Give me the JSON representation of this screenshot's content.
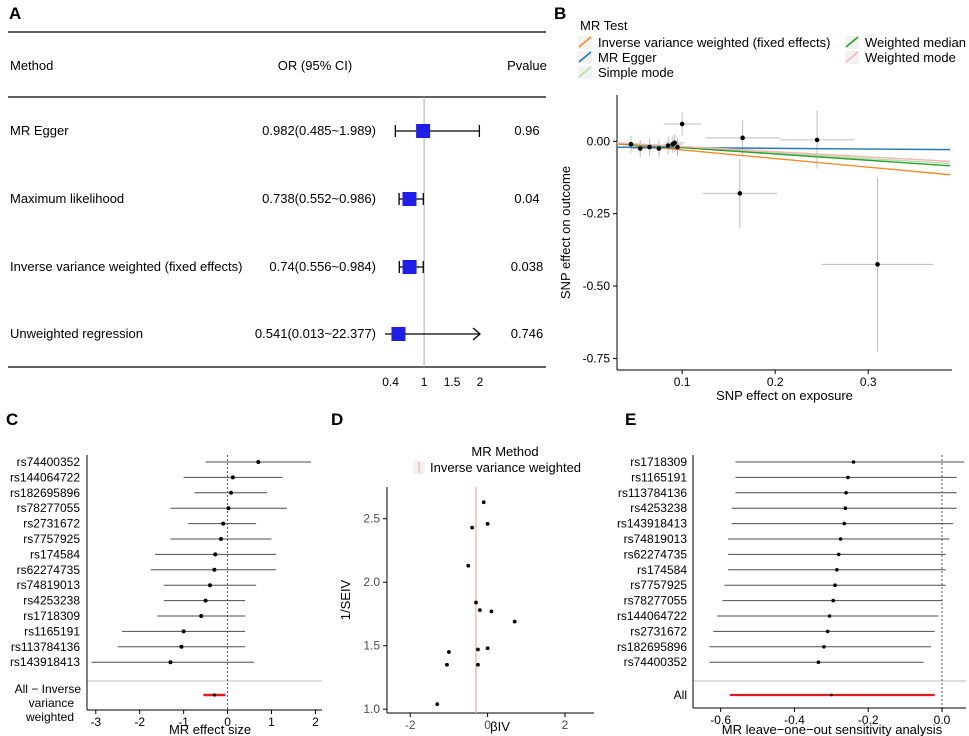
{
  "figure": {
    "panel_letters": [
      "A",
      "B",
      "C",
      "D",
      "E"
    ]
  },
  "chart_data": [
    {
      "panel": "A",
      "type": "forest",
      "headers": {
        "method": "Method",
        "or": "OR (95% CI)",
        "pvalue": "Pvalue"
      },
      "rows": [
        {
          "method": "MR Egger",
          "or_text": "0.982(0.485~1.989)",
          "or": 0.982,
          "lo": 0.485,
          "hi": 1.989,
          "p": "0.96",
          "arrow": false
        },
        {
          "method": "Maximum likelihood",
          "or_text": "0.738(0.552~0.986)",
          "or": 0.738,
          "lo": 0.552,
          "hi": 0.986,
          "p": "0.04",
          "arrow": false
        },
        {
          "method": "Inverse variance weighted (fixed effects)",
          "or_text": "0.74(0.556~0.984)",
          "or": 0.74,
          "lo": 0.556,
          "hi": 0.984,
          "p": "0.038",
          "arrow": false
        },
        {
          "method": "Unweighted regression",
          "or_text": "0.541(0.013~22.377)",
          "or": 0.541,
          "lo": 0.013,
          "hi": 22.377,
          "p": "0.746",
          "arrow": true
        }
      ],
      "xticks": [
        {
          "v": 0.4,
          "label": "0.4"
        },
        {
          "v": 1,
          "label": "1"
        },
        {
          "v": 1.5,
          "label": "1.5"
        },
        {
          "v": 2,
          "label": "2"
        }
      ],
      "xlim": [
        0.3,
        2.0
      ],
      "ref": 1
    },
    {
      "panel": "B",
      "type": "scatter",
      "legend_title": "MR Test",
      "legend": [
        {
          "name": "Inverse variance weighted (fixed effects)",
          "color": "#f28c28"
        },
        {
          "name": "MR Egger",
          "color": "#1f77b4"
        },
        {
          "name": "Simple mode",
          "color": "#b5e0a8"
        },
        {
          "name": "Weighted median",
          "color": "#2ca02c"
        },
        {
          "name": "Weighted mode",
          "color": "#f4b6b6"
        }
      ],
      "xlabel": "SNP effect on exposure",
      "ylabel": "SNP effect on outcome",
      "xlim": [
        0.03,
        0.39
      ],
      "ylim": [
        -0.79,
        0.16
      ],
      "xticks": [
        0.1,
        0.2,
        0.3
      ],
      "xtick_labels": [
        "0.1",
        "0.2",
        "0.3"
      ],
      "yticks": [
        0,
        -0.25,
        -0.5,
        -0.75
      ],
      "ytick_labels": [
        "0.00",
        "-0.25",
        "-0.50",
        "-0.75"
      ],
      "points": [
        {
          "x": 0.045,
          "y": -0.01,
          "ex": 0.01,
          "ey": 0.03
        },
        {
          "x": 0.055,
          "y": -0.025,
          "ex": 0.01,
          "ey": 0.03
        },
        {
          "x": 0.065,
          "y": -0.02,
          "ex": 0.015,
          "ey": 0.03
        },
        {
          "x": 0.075,
          "y": -0.025,
          "ex": 0.015,
          "ey": 0.03
        },
        {
          "x": 0.085,
          "y": -0.015,
          "ex": 0.01,
          "ey": 0.03
        },
        {
          "x": 0.09,
          "y": -0.01,
          "ex": 0.01,
          "ey": 0.03
        },
        {
          "x": 0.092,
          "y": -0.005,
          "ex": 0.01,
          "ey": 0.03
        },
        {
          "x": 0.095,
          "y": -0.02,
          "ex": 0.01,
          "ey": 0.03
        },
        {
          "x": 0.1,
          "y": 0.06,
          "ex": 0.02,
          "ey": 0.04
        },
        {
          "x": 0.165,
          "y": 0.012,
          "ex": 0.04,
          "ey": 0.06
        },
        {
          "x": 0.245,
          "y": 0.005,
          "ex": 0.04,
          "ey": 0.1
        },
        {
          "x": 0.162,
          "y": -0.18,
          "ex": 0.04,
          "ey": 0.12
        },
        {
          "x": 0.31,
          "y": -0.425,
          "ex": 0.06,
          "ey": 0.3
        }
      ],
      "lines": [
        {
          "name": "Inverse variance weighted (fixed effects)",
          "color": "#f28c28",
          "intercept": 0,
          "slope": -0.3
        },
        {
          "name": "MR Egger",
          "color": "#1f77b4",
          "intercept": -0.0195,
          "slope": -0.024
        },
        {
          "name": "Simple mode",
          "color": "#b5e0a8",
          "intercept": 0,
          "slope": -0.2
        },
        {
          "name": "Weighted median",
          "color": "#2ca02c",
          "intercept": 0,
          "slope": -0.22
        },
        {
          "name": "Weighted mode",
          "color": "#f4b6b6",
          "intercept": 0,
          "slope": -0.18
        }
      ]
    },
    {
      "panel": "C",
      "type": "forest",
      "xlabel": "MR effect size",
      "snps": [
        "rs74400352",
        "rs144064722",
        "rs182695896",
        "rs78277055",
        "rs2731672",
        "rs7757925",
        "rs174584",
        "rs62274735",
        "rs74819013",
        "rs4253238",
        "rs1718309",
        "rs1165191",
        "rs113784136",
        "rs143918413"
      ],
      "effect": [
        0.7,
        0.12,
        0.08,
        0.02,
        -0.1,
        -0.15,
        -0.28,
        -0.3,
        -0.4,
        -0.5,
        -0.6,
        -1.0,
        -1.05,
        -1.3
      ],
      "lo": [
        -0.5,
        -1.0,
        -0.75,
        -1.3,
        -0.9,
        -1.3,
        -1.65,
        -1.75,
        -1.45,
        -1.45,
        -1.6,
        -2.4,
        -2.5,
        -3.1
      ],
      "hi": [
        1.9,
        1.25,
        0.9,
        1.35,
        0.65,
        1.0,
        1.1,
        1.1,
        0.65,
        0.4,
        0.4,
        0.4,
        0.4,
        0.6
      ],
      "summary": {
        "label_lines": [
          "All − Inverse",
          "variance",
          "weighted"
        ],
        "effect": -0.3,
        "lo": -0.55,
        "hi": -0.05,
        "color": "#e31a1c"
      },
      "xlim": [
        -3.2,
        2.15
      ],
      "xticks": [
        -3,
        -2,
        -1,
        0,
        1,
        2
      ],
      "xtick_labels": [
        "-3",
        "-2",
        "-1",
        "0",
        "1",
        "2"
      ]
    },
    {
      "panel": "D",
      "type": "funnel",
      "legend_title": "MR Method",
      "legend": [
        {
          "name": "Inverse variance weighted",
          "color": "#f4b6b6"
        }
      ],
      "xlabel": "βIV",
      "ylabel": "1/SEIV",
      "xlim": [
        -2.6,
        2.75
      ],
      "ylim": [
        0.97,
        2.75
      ],
      "xticks": [
        -2,
        0,
        2
      ],
      "xtick_labels": [
        "-2",
        "0",
        "2"
      ],
      "yticks": [
        1.0,
        1.5,
        2.0,
        2.5
      ],
      "ytick_labels": [
        "1.0",
        "1.5",
        "2.0",
        "2.5"
      ],
      "ivw": -0.3,
      "points": [
        {
          "x": -0.1,
          "y": 2.63
        },
        {
          "x": 0.0,
          "y": 2.46
        },
        {
          "x": -0.4,
          "y": 2.43
        },
        {
          "x": -0.5,
          "y": 2.13
        },
        {
          "x": -0.3,
          "y": 1.84
        },
        {
          "x": -0.2,
          "y": 1.78
        },
        {
          "x": 0.1,
          "y": 1.77
        },
        {
          "x": 0.7,
          "y": 1.69
        },
        {
          "x": -0.25,
          "y": 1.47
        },
        {
          "x": -1.0,
          "y": 1.45
        },
        {
          "x": 0.0,
          "y": 1.48
        },
        {
          "x": -1.05,
          "y": 1.35
        },
        {
          "x": -0.25,
          "y": 1.35
        },
        {
          "x": -1.3,
          "y": 1.04
        }
      ]
    },
    {
      "panel": "E",
      "type": "leave-one-out",
      "xlabel": "MR leave−one−out sensitivity analysis",
      "snps": [
        "rs1718309",
        "rs1165191",
        "rs113784136",
        "rs4253238",
        "rs143918413",
        "rs74819013",
        "rs62274735",
        "rs174584",
        "rs7757925",
        "rs78277055",
        "rs144064722",
        "rs2731672",
        "rs182695896",
        "rs74400352"
      ],
      "effect": [
        -0.24,
        -0.255,
        -0.26,
        -0.262,
        -0.265,
        -0.275,
        -0.28,
        -0.285,
        -0.29,
        -0.295,
        -0.305,
        -0.31,
        -0.32,
        -0.335
      ],
      "lo": [
        -0.56,
        -0.56,
        -0.56,
        -0.57,
        -0.57,
        -0.58,
        -0.58,
        -0.58,
        -0.59,
        -0.595,
        -0.61,
        -0.62,
        -0.63,
        -0.63
      ],
      "hi": [
        0.06,
        0.04,
        0.04,
        0.04,
        0.03,
        0.02,
        0.01,
        0.01,
        0.01,
        0.0,
        -0.01,
        -0.02,
        -0.03,
        -0.05
      ],
      "summary": {
        "label": "All",
        "effect": -0.3,
        "lo": -0.575,
        "hi": -0.02,
        "color": "#e31a1c"
      },
      "xlim": [
        -0.675,
        0.065
      ],
      "xticks": [
        -0.6,
        -0.4,
        -0.2,
        0.0
      ],
      "xtick_labels": [
        "-0.6",
        "-0.4",
        "-0.2",
        "0.0"
      ]
    }
  ]
}
